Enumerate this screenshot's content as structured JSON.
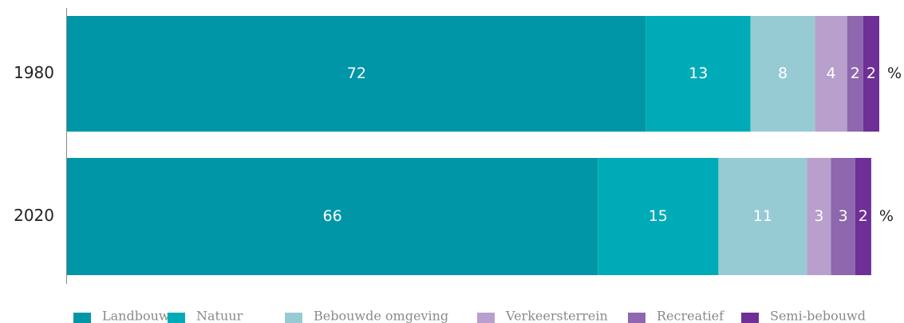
{
  "chart_data": {
    "type": "stacked-bar-horizontal",
    "categories": [
      "1980",
      "2020"
    ],
    "unit": "%",
    "series": [
      {
        "name": "Landbouw",
        "color": "#0096a8",
        "values": [
          72,
          66
        ]
      },
      {
        "name": "Natuur",
        "color": "#00abb8",
        "values": [
          13,
          15
        ]
      },
      {
        "name": "Bebouwde omgeving",
        "color": "#97cbd4",
        "values": [
          8,
          11
        ]
      },
      {
        "name": "Verkeersterrein",
        "color": "#b89fcc",
        "values": [
          4,
          3
        ]
      },
      {
        "name": "Recreatief",
        "color": "#8e67ae",
        "values": [
          2,
          3
        ]
      },
      {
        "name": "Semi-bebouwd",
        "color": "#6e2f96",
        "values": [
          2,
          2
        ]
      }
    ],
    "legend": "bottom"
  }
}
